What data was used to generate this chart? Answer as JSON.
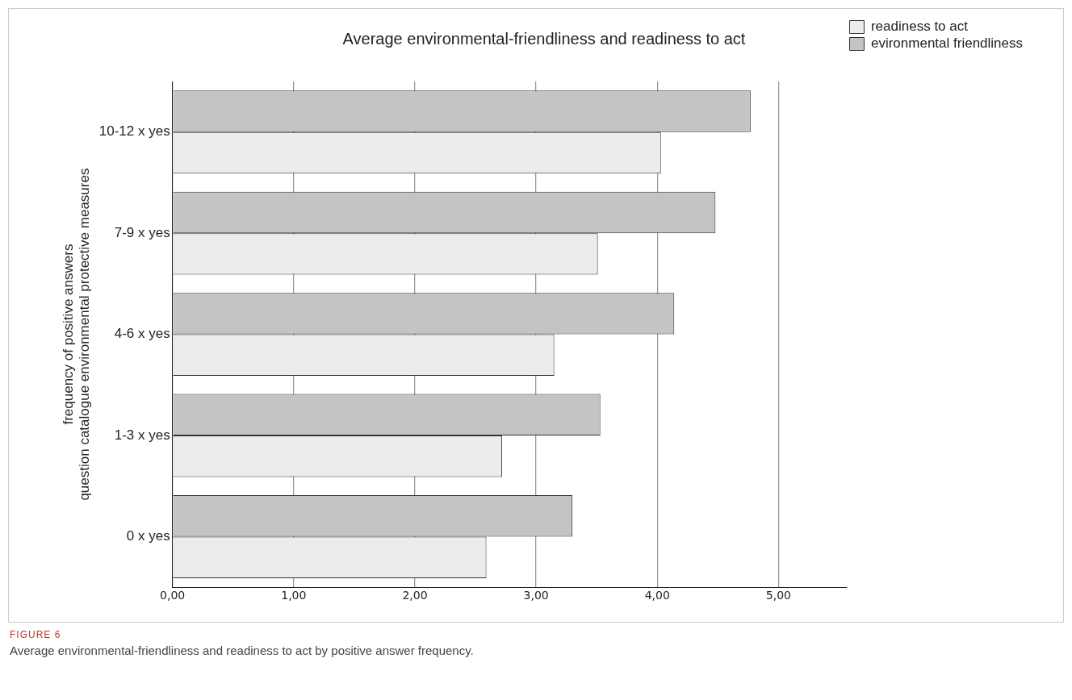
{
  "chart_data": {
    "type": "bar",
    "orientation": "horizontal",
    "title": "Average environmental-friendliness and readiness to act",
    "ylabel": "frequency of positive answers\nquestion catalogue environmental protective measures",
    "categories": [
      "10-12 x yes",
      "7-9 x yes",
      "4-6 x yes",
      "1-3 x yes",
      "0 x yes"
    ],
    "series": [
      {
        "name": "evironmental friendliness",
        "color": "#c4c4c4",
        "values": [
          4.77,
          4.48,
          4.14,
          3.53,
          3.3
        ]
      },
      {
        "name": "readiness to act",
        "color": "#ececec",
        "values": [
          4.03,
          3.51,
          3.15,
          2.72,
          2.59
        ]
      }
    ],
    "xlim": [
      0,
      5.56
    ],
    "xticks": [
      {
        "value": 0,
        "label": "0,00"
      },
      {
        "value": 1,
        "label": "1,00"
      },
      {
        "value": 2,
        "label": "2,00"
      },
      {
        "value": 3,
        "label": "3,00"
      },
      {
        "value": 4,
        "label": "4,00"
      },
      {
        "value": 5,
        "label": "5,00"
      }
    ],
    "grid": "x",
    "legend": "top right",
    "annotations": [
      "FIGURE 6",
      "Average environmental-friendliness and readiness to act by positive answer frequency."
    ]
  }
}
